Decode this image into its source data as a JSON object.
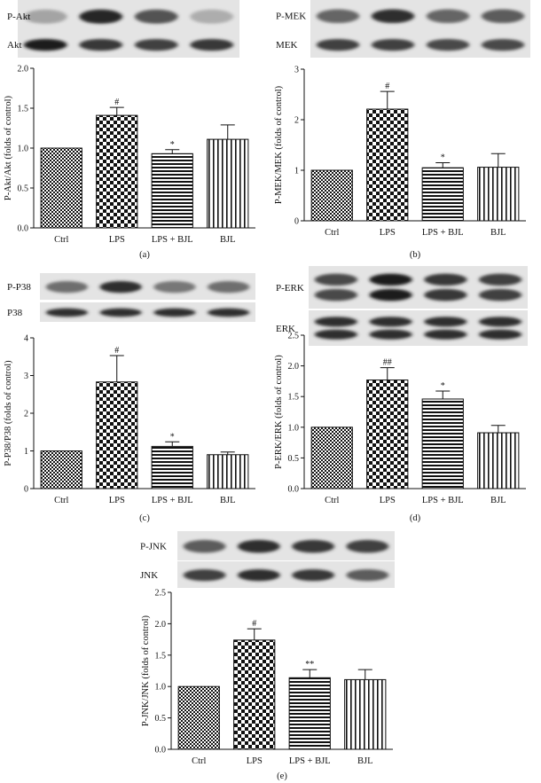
{
  "colors": {
    "ink": "#111111",
    "blot_bg": "#e4e4e4"
  },
  "chart_data": [
    {
      "panel": "(a)",
      "type": "bar",
      "categories": [
        "Ctrl",
        "LPS",
        "LPS + BJL",
        "BJL"
      ],
      "values": [
        1.0,
        1.41,
        0.93,
        1.11
      ],
      "errors": [
        0.0,
        0.1,
        0.05,
        0.18
      ],
      "annotations": [
        "",
        "#",
        "*",
        ""
      ],
      "ylabel": "P-Akt/Akt (folds of control)",
      "ylim": [
        0,
        2.0
      ],
      "yticks": [
        "0.0",
        "0.5",
        "1.0",
        "1.5",
        "2.0"
      ],
      "blots": [
        {
          "label": "P-Akt",
          "intensities": [
            0.2,
            0.9,
            0.65,
            0.15
          ]
        },
        {
          "label": "Akt",
          "intensities": [
            0.95,
            0.8,
            0.75,
            0.8
          ]
        }
      ]
    },
    {
      "panel": "(b)",
      "type": "bar",
      "categories": [
        "Ctrl",
        "LPS",
        "LPS + BJL",
        "BJL"
      ],
      "values": [
        1.0,
        2.21,
        1.05,
        1.06
      ],
      "errors": [
        0.0,
        0.35,
        0.1,
        0.27
      ],
      "annotations": [
        "",
        "#",
        "*",
        ""
      ],
      "ylabel": "P-MEK/MEK (folds of control)",
      "ylim": [
        0,
        3
      ],
      "yticks": [
        "0",
        "1",
        "2",
        "3"
      ],
      "blots": [
        {
          "label": "P-MEK",
          "intensities": [
            0.55,
            0.85,
            0.55,
            0.6
          ]
        },
        {
          "label": "MEK",
          "intensities": [
            0.75,
            0.75,
            0.7,
            0.7
          ]
        }
      ]
    },
    {
      "panel": "(c)",
      "type": "bar",
      "categories": [
        "Ctrl",
        "LPS",
        "LPS + BJL",
        "BJL"
      ],
      "values": [
        1.0,
        2.83,
        1.12,
        0.9
      ],
      "errors": [
        0.0,
        0.7,
        0.12,
        0.07
      ],
      "annotations": [
        "",
        "#",
        "*",
        ""
      ],
      "ylabel": "P-P38/P38 (folds of control)",
      "ylim": [
        0,
        4
      ],
      "yticks": [
        "0",
        "1",
        "2",
        "3",
        "4"
      ],
      "blots": [
        {
          "label": "P-P38",
          "intensities": [
            0.5,
            0.85,
            0.45,
            0.5
          ]
        },
        {
          "label": "P38",
          "intensities": [
            0.85,
            0.85,
            0.85,
            0.85
          ]
        }
      ]
    },
    {
      "panel": "(d)",
      "type": "bar",
      "categories": [
        "Ctrl",
        "LPS",
        "LPS + BJL",
        "BJL"
      ],
      "values": [
        1.0,
        1.77,
        1.46,
        0.91
      ],
      "errors": [
        0.0,
        0.2,
        0.13,
        0.12
      ],
      "annotations": [
        "",
        "##",
        "*",
        ""
      ],
      "ylabel": "P-ERK/ERK (folds of control)",
      "ylim": [
        0,
        2.5
      ],
      "yticks": [
        "0.0",
        "0.5",
        "1.0",
        "1.5",
        "2.0",
        "2.5"
      ],
      "blots": [
        {
          "label": "P-ERK",
          "intensities": [
            0.7,
            0.95,
            0.8,
            0.75
          ],
          "double": true
        },
        {
          "label": "ERK",
          "intensities": [
            0.85,
            0.85,
            0.85,
            0.85
          ],
          "double": true
        }
      ]
    },
    {
      "panel": "(e)",
      "type": "bar",
      "categories": [
        "Ctrl",
        "LPS",
        "LPS + BJL",
        "BJL"
      ],
      "values": [
        1.0,
        1.74,
        1.14,
        1.11
      ],
      "errors": [
        0.0,
        0.18,
        0.13,
        0.16
      ],
      "annotations": [
        "",
        "#",
        "**",
        ""
      ],
      "ylabel": "P-JNK/JNK (folds of control)",
      "ylim": [
        0,
        2.5
      ],
      "yticks": [
        "0.0",
        "0.5",
        "1.0",
        "1.5",
        "2.0",
        "2.5"
      ],
      "blots": [
        {
          "label": "P-JNK",
          "intensities": [
            0.6,
            0.85,
            0.8,
            0.75
          ]
        },
        {
          "label": "JNK",
          "intensities": [
            0.75,
            0.85,
            0.8,
            0.6
          ]
        }
      ]
    }
  ]
}
